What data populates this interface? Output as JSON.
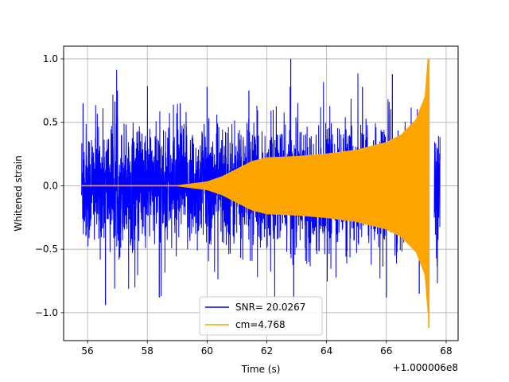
{
  "chart_data": {
    "type": "line",
    "title": "",
    "xlabel": "Time (s)",
    "ylabel": "Whitened strain",
    "x_offset_label": "+1.000006e8",
    "xlim": [
      55.2,
      68.4
    ],
    "ylim": [
      -1.22,
      1.1
    ],
    "xticks": [
      56,
      58,
      60,
      62,
      64,
      66,
      68
    ],
    "yticks": [
      -1.0,
      -0.5,
      0.0,
      0.5,
      1.0
    ],
    "xtick_labels": [
      "56",
      "58",
      "60",
      "62",
      "64",
      "66",
      "68"
    ],
    "ytick_labels": [
      "−1.0",
      "−0.5",
      "0.0",
      "0.5",
      "1.0"
    ],
    "grid": true,
    "legend_position": "lower center",
    "series": [
      {
        "name": "SNR= 20.0267",
        "color": "#0000ff",
        "style": "noise",
        "x_range": [
          55.8,
          67.8
        ],
        "gap": [
          67.4,
          67.6
        ],
        "max": 1.0,
        "min": -0.95,
        "typical_amplitude": 0.5
      },
      {
        "name": "cm=4.768",
        "color": "#ffa500",
        "style": "chirp",
        "x_range": [
          55.8,
          67.45
        ],
        "envelope": [
          {
            "x": 55.8,
            "y": 0.0
          },
          {
            "x": 59.0,
            "y": 0.0
          },
          {
            "x": 60.0,
            "y": 0.03
          },
          {
            "x": 60.5,
            "y": 0.07
          },
          {
            "x": 61.0,
            "y": 0.13
          },
          {
            "x": 61.5,
            "y": 0.19
          },
          {
            "x": 62.0,
            "y": 0.22
          },
          {
            "x": 63.0,
            "y": 0.23
          },
          {
            "x": 64.0,
            "y": 0.25
          },
          {
            "x": 65.0,
            "y": 0.28
          },
          {
            "x": 66.0,
            "y": 0.34
          },
          {
            "x": 66.5,
            "y": 0.4
          },
          {
            "x": 67.0,
            "y": 0.52
          },
          {
            "x": 67.3,
            "y": 0.7
          },
          {
            "x": 67.4,
            "y": 1.0
          }
        ],
        "spike_min": -1.12,
        "spike_x": 67.42
      }
    ]
  }
}
